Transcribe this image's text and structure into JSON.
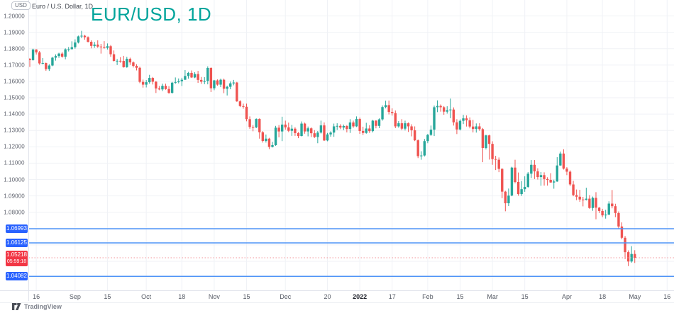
{
  "header": {
    "currency_button": "USD",
    "symbol_description": "Euro / U.S. Dollar, 1D",
    "watermark_title": "EUR/USD, 1D"
  },
  "footer": {
    "logo_text": "TradingView"
  },
  "colors": {
    "up": "#26a69a",
    "down": "#ef5350",
    "badge_blue": "#2962ff",
    "badge_red": "#f23645",
    "level_line_blue": "#4f94f7",
    "current_line_red": "#f2969b",
    "title_teal": "#00a49b",
    "grid": "#f0f2f6",
    "axis_text": "#5d616c"
  },
  "chart_data": {
    "type": "candlestick",
    "title": "EUR/USD, 1D",
    "symbol": "Euro / U.S. Dollar",
    "timeframe": "1D",
    "period_shown": "Aug 2021 - May 2022",
    "current_price": 1.05218,
    "countdown": "05:59:18",
    "y_axis": {
      "grid_from": 1.04,
      "grid_to": 1.2,
      "grid_step": 0.01,
      "visible_range": [
        1.032,
        1.206
      ],
      "ticks": [
        {
          "label": "1.20000",
          "value": 1.2
        },
        {
          "label": "1.19000",
          "value": 1.19
        },
        {
          "label": "1.18000",
          "value": 1.18
        },
        {
          "label": "1.17000",
          "value": 1.17
        },
        {
          "label": "1.16000",
          "value": 1.16
        },
        {
          "label": "1.15000",
          "value": 1.15
        },
        {
          "label": "1.14000",
          "value": 1.14
        },
        {
          "label": "1.13000",
          "value": 1.13
        },
        {
          "label": "1.12000",
          "value": 1.12
        },
        {
          "label": "1.11000",
          "value": 1.11
        },
        {
          "label": "1.10000",
          "value": 1.1
        },
        {
          "label": "1.09000",
          "value": 1.09
        },
        {
          "label": "1.08000",
          "value": 1.08
        }
      ]
    },
    "x_axis": {
      "ticks": [
        {
          "label": "16",
          "index": 2
        },
        {
          "label": "Sep",
          "index": 14
        },
        {
          "label": "15",
          "index": 24
        },
        {
          "label": "Oct",
          "index": 36
        },
        {
          "label": "18",
          "index": 47
        },
        {
          "label": "Nov",
          "index": 57
        },
        {
          "label": "15",
          "index": 67
        },
        {
          "label": "Dec",
          "index": 79
        },
        {
          "label": "20",
          "index": 92
        },
        {
          "label": "2022",
          "index": 102,
          "major": true
        },
        {
          "label": "17",
          "index": 112
        },
        {
          "label": "Feb",
          "index": 123
        },
        {
          "label": "15",
          "index": 133
        },
        {
          "label": "Mar",
          "index": 143
        },
        {
          "label": "15",
          "index": 153
        },
        {
          "label": "Apr",
          "index": 166
        },
        {
          "label": "18",
          "index": 177
        },
        {
          "label": "May",
          "index": 187
        },
        {
          "label": "16",
          "index": 197
        }
      ]
    },
    "horizontal_levels": [
      {
        "price": 1.06993,
        "label": "1.06993",
        "style": "solid",
        "kind": "level"
      },
      {
        "price": 1.06125,
        "label": "1.06125",
        "style": "solid",
        "kind": "level"
      },
      {
        "price": 1.05218,
        "label": "1.05218",
        "style": "dotted",
        "kind": "current",
        "countdown": "05:59:18"
      },
      {
        "price": 1.04082,
        "label": "1.04082",
        "style": "solid",
        "kind": "level"
      }
    ],
    "ohlc": [
      [
        1.1738,
        1.1742,
        1.1688,
        1.173
      ],
      [
        1.173,
        1.18,
        1.1727,
        1.1795
      ],
      [
        1.1795,
        1.1797,
        1.1764,
        1.1777
      ],
      [
        1.1777,
        1.1786,
        1.1702,
        1.171
      ],
      [
        1.171,
        1.1743,
        1.1705,
        1.1712
      ],
      [
        1.1712,
        1.1715,
        1.1665,
        1.1675
      ],
      [
        1.1675,
        1.1705,
        1.1664,
        1.1697
      ],
      [
        1.1697,
        1.175,
        1.1693,
        1.1745
      ],
      [
        1.1745,
        1.1765,
        1.1727,
        1.1755
      ],
      [
        1.1755,
        1.1775,
        1.1744,
        1.177
      ],
      [
        1.177,
        1.1779,
        1.1745,
        1.1751
      ],
      [
        1.1751,
        1.1802,
        1.1735,
        1.1796
      ],
      [
        1.1796,
        1.181,
        1.1783,
        1.1797
      ],
      [
        1.1797,
        1.1845,
        1.1795,
        1.1809
      ],
      [
        1.1809,
        1.1857,
        1.18,
        1.1838
      ],
      [
        1.1838,
        1.188,
        1.1832,
        1.1875
      ],
      [
        1.1875,
        1.1909,
        1.1864,
        1.1879
      ],
      [
        1.1879,
        1.1885,
        1.1855,
        1.187
      ],
      [
        1.187,
        1.1875,
        1.1838,
        1.1842
      ],
      [
        1.1842,
        1.1851,
        1.1802,
        1.1817
      ],
      [
        1.1817,
        1.1841,
        1.1805,
        1.1825
      ],
      [
        1.1825,
        1.1851,
        1.1805,
        1.1813
      ],
      [
        1.1813,
        1.1829,
        1.177,
        1.181
      ],
      [
        1.181,
        1.1846,
        1.18,
        1.1805
      ],
      [
        1.1805,
        1.1832,
        1.1795,
        1.1815
      ],
      [
        1.1815,
        1.1822,
        1.175,
        1.1766
      ],
      [
        1.1766,
        1.1789,
        1.1722,
        1.1725
      ],
      [
        1.1725,
        1.1737,
        1.17,
        1.1726
      ],
      [
        1.1726,
        1.1748,
        1.1714,
        1.1725
      ],
      [
        1.1725,
        1.1756,
        1.1684,
        1.1687
      ],
      [
        1.1687,
        1.175,
        1.1683,
        1.1738
      ],
      [
        1.1738,
        1.1745,
        1.1701,
        1.1716
      ],
      [
        1.1716,
        1.1722,
        1.1685,
        1.1695
      ],
      [
        1.1695,
        1.1705,
        1.1667,
        1.1683
      ],
      [
        1.1683,
        1.169,
        1.1589,
        1.1597
      ],
      [
        1.1597,
        1.1611,
        1.1562,
        1.158
      ],
      [
        1.158,
        1.1608,
        1.1563,
        1.1595
      ],
      [
        1.1595,
        1.164,
        1.1586,
        1.1621
      ],
      [
        1.1621,
        1.1627,
        1.1581,
        1.1598
      ],
      [
        1.1598,
        1.1602,
        1.1529,
        1.1557
      ],
      [
        1.1557,
        1.1572,
        1.1546,
        1.1551
      ],
      [
        1.1551,
        1.1586,
        1.1541,
        1.1573
      ],
      [
        1.1573,
        1.1586,
        1.1549,
        1.1553
      ],
      [
        1.1553,
        1.1571,
        1.1524,
        1.153
      ],
      [
        1.153,
        1.1597,
        1.1525,
        1.1592
      ],
      [
        1.1592,
        1.1624,
        1.1585,
        1.1596
      ],
      [
        1.1596,
        1.1618,
        1.1588,
        1.1601
      ],
      [
        1.1601,
        1.1622,
        1.1572,
        1.161
      ],
      [
        1.161,
        1.1669,
        1.1609,
        1.1633
      ],
      [
        1.1633,
        1.1658,
        1.1617,
        1.1652
      ],
      [
        1.1652,
        1.1667,
        1.1621,
        1.1624
      ],
      [
        1.1624,
        1.1656,
        1.162,
        1.1645
      ],
      [
        1.1645,
        1.1664,
        1.1591,
        1.1609
      ],
      [
        1.1609,
        1.1627,
        1.1585,
        1.1598
      ],
      [
        1.1598,
        1.1626,
        1.1583,
        1.1603
      ],
      [
        1.1603,
        1.1692,
        1.1582,
        1.1682
      ],
      [
        1.1682,
        1.1686,
        1.1535,
        1.1558
      ],
      [
        1.1558,
        1.1609,
        1.1546,
        1.1606
      ],
      [
        1.1606,
        1.1612,
        1.1574,
        1.158
      ],
      [
        1.158,
        1.1617,
        1.1565,
        1.161
      ],
      [
        1.161,
        1.1617,
        1.1528,
        1.1555
      ],
      [
        1.1555,
        1.1574,
        1.1514,
        1.1567
      ],
      [
        1.1567,
        1.1599,
        1.1552,
        1.1588
      ],
      [
        1.1588,
        1.1609,
        1.1576,
        1.1593
      ],
      [
        1.1593,
        1.1597,
        1.1475,
        1.1478
      ],
      [
        1.1478,
        1.1485,
        1.1443,
        1.1449
      ],
      [
        1.1449,
        1.1464,
        1.1433,
        1.1445
      ],
      [
        1.1445,
        1.1464,
        1.1356,
        1.1369
      ],
      [
        1.1369,
        1.1386,
        1.131,
        1.1321
      ],
      [
        1.1321,
        1.1333,
        1.1295,
        1.1319
      ],
      [
        1.1319,
        1.1374,
        1.1314,
        1.137
      ],
      [
        1.137,
        1.1374,
        1.125,
        1.1289
      ],
      [
        1.1289,
        1.1296,
        1.1226,
        1.1236
      ],
      [
        1.1236,
        1.1275,
        1.1226,
        1.125
      ],
      [
        1.125,
        1.1255,
        1.1186,
        1.1199
      ],
      [
        1.1199,
        1.123,
        1.1196,
        1.121
      ],
      [
        1.121,
        1.1328,
        1.1206,
        1.1317
      ],
      [
        1.1317,
        1.1333,
        1.1258,
        1.1294
      ],
      [
        1.1294,
        1.1384,
        1.1235,
        1.1336
      ],
      [
        1.1336,
        1.136,
        1.1305,
        1.1319
      ],
      [
        1.1319,
        1.1348,
        1.129,
        1.1298
      ],
      [
        1.1298,
        1.1334,
        1.1267,
        1.1311
      ],
      [
        1.1311,
        1.132,
        1.1267,
        1.1284
      ],
      [
        1.1284,
        1.129,
        1.1253,
        1.1266
      ],
      [
        1.1266,
        1.1355,
        1.1264,
        1.1342
      ],
      [
        1.1342,
        1.1348,
        1.128,
        1.1294
      ],
      [
        1.1294,
        1.1324,
        1.1264,
        1.1313
      ],
      [
        1.1313,
        1.1319,
        1.126,
        1.1283
      ],
      [
        1.1283,
        1.1302,
        1.1254,
        1.126
      ],
      [
        1.126,
        1.1297,
        1.1222,
        1.1287
      ],
      [
        1.1287,
        1.136,
        1.1281,
        1.1331
      ],
      [
        1.1331,
        1.1349,
        1.1236,
        1.1239
      ],
      [
        1.1239,
        1.1285,
        1.1234,
        1.1276
      ],
      [
        1.1276,
        1.1295,
        1.1262,
        1.1287
      ],
      [
        1.1287,
        1.1342,
        1.1261,
        1.1325
      ],
      [
        1.1325,
        1.1344,
        1.1303,
        1.1328
      ],
      [
        1.1328,
        1.1338,
        1.1308,
        1.1318
      ],
      [
        1.1318,
        1.1336,
        1.1302,
        1.1327
      ],
      [
        1.1327,
        1.1333,
        1.1288,
        1.1309
      ],
      [
        1.1309,
        1.1369,
        1.1285,
        1.1349
      ],
      [
        1.1349,
        1.136,
        1.1316,
        1.1325
      ],
      [
        1.1325,
        1.1386,
        1.1321,
        1.137
      ],
      [
        1.137,
        1.1379,
        1.1279,
        1.1297
      ],
      [
        1.1297,
        1.1323,
        1.1272,
        1.1285
      ],
      [
        1.1285,
        1.1347,
        1.128,
        1.1312
      ],
      [
        1.1312,
        1.1332,
        1.1285,
        1.1296
      ],
      [
        1.1296,
        1.1365,
        1.1288,
        1.136
      ],
      [
        1.136,
        1.1363,
        1.1313,
        1.1328
      ],
      [
        1.1328,
        1.1374,
        1.1314,
        1.1368
      ],
      [
        1.1368,
        1.1453,
        1.136,
        1.1443
      ],
      [
        1.1443,
        1.1482,
        1.1435,
        1.1455
      ],
      [
        1.1455,
        1.1483,
        1.1398,
        1.1413
      ],
      [
        1.1413,
        1.1435,
        1.1391,
        1.1406
      ],
      [
        1.1406,
        1.1422,
        1.1314,
        1.1325
      ],
      [
        1.1325,
        1.1357,
        1.1317,
        1.1344
      ],
      [
        1.1344,
        1.1369,
        1.1301,
        1.1311
      ],
      [
        1.1311,
        1.136,
        1.13,
        1.1344
      ],
      [
        1.1344,
        1.1349,
        1.1291,
        1.1325
      ],
      [
        1.1325,
        1.1338,
        1.1264,
        1.1301
      ],
      [
        1.1301,
        1.1325,
        1.1235,
        1.124
      ],
      [
        1.124,
        1.1245,
        1.1131,
        1.1143
      ],
      [
        1.1143,
        1.1173,
        1.1121,
        1.1147
      ],
      [
        1.1147,
        1.1248,
        1.1141,
        1.1235
      ],
      [
        1.1235,
        1.1279,
        1.1222,
        1.1273
      ],
      [
        1.1273,
        1.133,
        1.1267,
        1.1305
      ],
      [
        1.1305,
        1.1452,
        1.1266,
        1.1442
      ],
      [
        1.1442,
        1.1484,
        1.1412,
        1.145
      ],
      [
        1.145,
        1.1459,
        1.1415,
        1.1442
      ],
      [
        1.1442,
        1.1449,
        1.1396,
        1.1415
      ],
      [
        1.1415,
        1.1448,
        1.1403,
        1.1424
      ],
      [
        1.1424,
        1.1495,
        1.1375,
        1.1428
      ],
      [
        1.1428,
        1.1441,
        1.133,
        1.135
      ],
      [
        1.135,
        1.1369,
        1.1278,
        1.1306
      ],
      [
        1.1306,
        1.1368,
        1.13,
        1.1359
      ],
      [
        1.1359,
        1.1395,
        1.1339,
        1.1374
      ],
      [
        1.1374,
        1.1392,
        1.1324,
        1.1362
      ],
      [
        1.1362,
        1.138,
        1.1313,
        1.1324
      ],
      [
        1.1324,
        1.1365,
        1.1288,
        1.1309
      ],
      [
        1.1309,
        1.1343,
        1.1287,
        1.1325
      ],
      [
        1.1325,
        1.1344,
        1.1298,
        1.1308
      ],
      [
        1.1308,
        1.1315,
        1.1106,
        1.1193
      ],
      [
        1.1193,
        1.1274,
        1.1184,
        1.127
      ],
      [
        1.127,
        1.1274,
        1.1122,
        1.1218
      ],
      [
        1.1218,
        1.1234,
        1.109,
        1.1125
      ],
      [
        1.1125,
        1.1145,
        1.1058,
        1.1121
      ],
      [
        1.1121,
        1.1135,
        1.1045,
        1.1065
      ],
      [
        1.1065,
        1.1069,
        1.0886,
        1.0926
      ],
      [
        1.0926,
        1.0931,
        1.0806,
        1.0855
      ],
      [
        1.0855,
        1.0945,
        1.0838,
        1.0902
      ],
      [
        1.0902,
        1.1078,
        1.0898,
        1.1073
      ],
      [
        1.1073,
        1.1121,
        1.0977,
        1.0985
      ],
      [
        1.0985,
        1.1043,
        1.0901,
        1.0911
      ],
      [
        1.0911,
        1.0991,
        1.09,
        1.0941
      ],
      [
        1.0941,
        1.102,
        1.0925,
        1.0955
      ],
      [
        1.0955,
        1.1046,
        1.095,
        1.1036
      ],
      [
        1.1036,
        1.1119,
        1.1009,
        1.109
      ],
      [
        1.109,
        1.1119,
        1.1003,
        1.105
      ],
      [
        1.105,
        1.1069,
        1.1,
        1.1015
      ],
      [
        1.1015,
        1.1046,
        1.0962,
        1.1027
      ],
      [
        1.1027,
        1.1044,
        1.0963,
        1.1003
      ],
      [
        1.1003,
        1.1014,
        1.0963,
        1.0998
      ],
      [
        1.0998,
        1.1039,
        1.098,
        1.0982
      ],
      [
        1.0982,
        1.0999,
        1.0944,
        1.0988
      ],
      [
        1.0988,
        1.1137,
        1.0986,
        1.1086
      ],
      [
        1.1086,
        1.1171,
        1.1084,
        1.1159
      ],
      [
        1.1159,
        1.1185,
        1.1061,
        1.1067
      ],
      [
        1.1067,
        1.1076,
        1.1027,
        1.1048
      ],
      [
        1.1048,
        1.1056,
        1.096,
        1.097
      ],
      [
        1.097,
        1.0992,
        1.0898,
        1.0905
      ],
      [
        1.0905,
        1.0939,
        1.0874,
        1.0895
      ],
      [
        1.0895,
        1.0937,
        1.0864,
        1.0878
      ],
      [
        1.0878,
        1.0894,
        1.0836,
        1.0876
      ],
      [
        1.0876,
        1.095,
        1.0872,
        1.0883
      ],
      [
        1.0883,
        1.0905,
        1.0821,
        1.0826
      ],
      [
        1.0826,
        1.0896,
        1.0809,
        1.0888
      ],
      [
        1.0888,
        1.0923,
        1.0757,
        1.0828
      ],
      [
        1.0828,
        1.0832,
        1.0795,
        1.0808
      ],
      [
        1.0808,
        1.0821,
        1.077,
        1.0781
      ],
      [
        1.0781,
        1.0815,
        1.0761,
        1.0786
      ],
      [
        1.0786,
        1.0867,
        1.0782,
        1.0853
      ],
      [
        1.0853,
        1.0936,
        1.0824,
        1.0837
      ],
      [
        1.0837,
        1.0852,
        1.077,
        1.0795
      ],
      [
        1.0795,
        1.0805,
        1.0697,
        1.0713
      ],
      [
        1.0713,
        1.0738,
        1.0635,
        1.0644
      ],
      [
        1.0644,
        1.0655,
        1.0514,
        1.0556
      ],
      [
        1.0556,
        1.0567,
        1.0471,
        1.0499
      ],
      [
        1.0499,
        1.0593,
        1.0492,
        1.0545
      ],
      [
        1.0545,
        1.0568,
        1.049,
        1.05218
      ]
    ]
  }
}
